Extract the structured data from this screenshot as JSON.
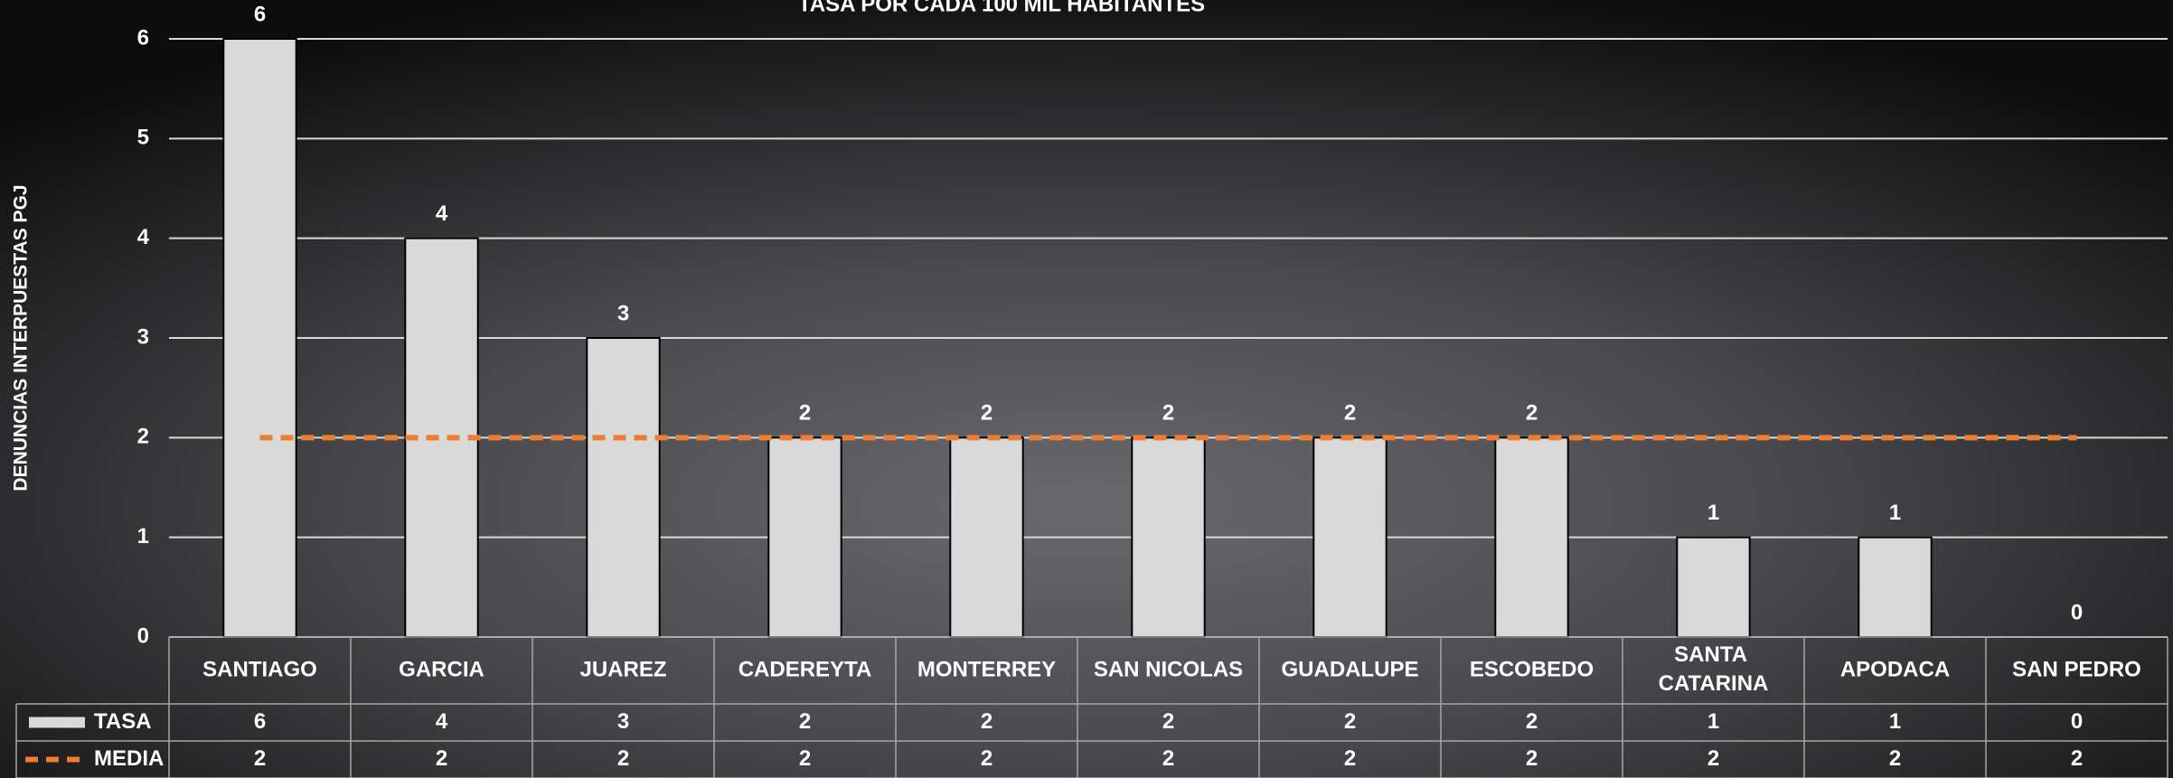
{
  "chart_data": {
    "type": "bar",
    "title": "TASA POR CADA 100 MIL HABITANTES",
    "y_label": "DENUNCIAS INTERPUESTAS PGJ",
    "categories": [
      "SANTIAGO",
      "GARCIA",
      "JUAREZ",
      "CADEREYTA",
      "MONTERREY",
      "SAN NICOLAS",
      "GUADALUPE",
      "ESCOBEDO",
      "SANTA CATARINA",
      "APODACA",
      "SAN PEDRO"
    ],
    "series": [
      {
        "name": "TASA",
        "color": "#d9d9d9",
        "mark": "bar",
        "values": [
          6,
          4,
          3,
          2,
          2,
          2,
          2,
          2,
          1,
          1,
          0
        ]
      },
      {
        "name": "MEDIA",
        "color": "#ed7d31",
        "mark": "dashed-line",
        "values": [
          2,
          2,
          2,
          2,
          2,
          2,
          2,
          2,
          2,
          2,
          2
        ]
      }
    ],
    "ylim": [
      0,
      6
    ],
    "yticks": [
      0,
      1,
      2,
      3,
      4,
      5,
      6
    ],
    "grid": true,
    "data_table": true
  }
}
